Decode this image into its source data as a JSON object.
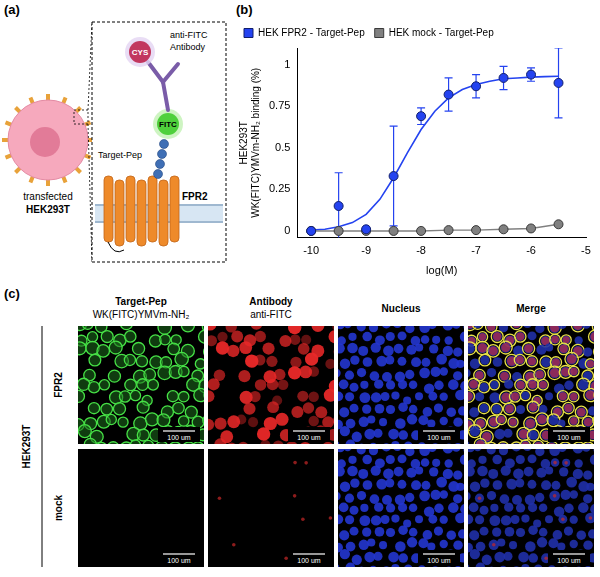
{
  "panel_a": {
    "letter": "(a)",
    "antibody_label": [
      "anti-FITC",
      "Antibody"
    ],
    "cys_label": "CYS",
    "fitc_label": "FITC",
    "peptide_label": "Target-Pep",
    "receptor_label": "FPR2",
    "cell_label": [
      "transfected",
      "HEK293T"
    ]
  },
  "chart_data": {
    "letter": "(b)",
    "type": "scatter",
    "y_label": [
      "HEK293T",
      "WK(FITC)YMVm-NH₂ binding (%)"
    ],
    "x_label": "log(M)",
    "xlim": [
      -10.25,
      -5
    ],
    "xticks": [
      -10,
      -9,
      -8,
      -7,
      -6,
      -5
    ],
    "ylim": [
      -0.04,
      1.1
    ],
    "yticks": [
      0,
      0.25,
      0.5,
      0.75,
      1
    ],
    "grid": false,
    "legend": "top",
    "x": [
      -10,
      -9.5,
      -9,
      -8.5,
      -8,
      -7.5,
      -7,
      -6.5,
      -6,
      -5.5
    ],
    "series": [
      {
        "name": "HEK FPR2 - Target-Pep",
        "color": "#2443f0",
        "marker": "circle",
        "line_style": "solid",
        "values": [
          0,
          0.15,
          0.01,
          0.33,
          0.69,
          0.82,
          0.87,
          0.92,
          0.94,
          0.89
        ],
        "errors": [
          0,
          0.2,
          0,
          0.3,
          0.05,
          0.1,
          0.07,
          0.07,
          0.04,
          0.21
        ],
        "fit_x": [
          -10,
          -9.75,
          -9.5,
          -9.25,
          -9,
          -8.75,
          -8.5,
          -8.25,
          -8,
          -7.75,
          -7.5,
          -7.25,
          -7,
          -6.75,
          -6.5,
          -6.25,
          -6,
          -5.75,
          -5.5
        ],
        "fit_values": [
          0.005,
          0.01,
          0.025,
          0.05,
          0.1,
          0.19,
          0.32,
          0.47,
          0.61,
          0.72,
          0.8,
          0.85,
          0.88,
          0.9,
          0.915,
          0.92,
          0.925,
          0.928,
          0.93
        ]
      },
      {
        "name": "HEK mock - Target-Pep",
        "color": "#808080",
        "marker": "circle",
        "line_style": "solid",
        "values": [
          0,
          0,
          0,
          0,
          0,
          0.005,
          0.005,
          0.01,
          0.015,
          0.04
        ]
      }
    ]
  },
  "panel_c": {
    "letter": "(c)",
    "group_label": "HEK293T",
    "rows": [
      "FPR2",
      "mock"
    ],
    "columns": [
      {
        "title": "Target-Pep",
        "subtitle": "WK(FITC)YMVm-NH₂"
      },
      {
        "title": "Antibody",
        "subtitle": "anti-FITC"
      },
      {
        "title": "Nucleus"
      },
      {
        "title": "Merge"
      }
    ],
    "scale_bar": "100 um"
  }
}
